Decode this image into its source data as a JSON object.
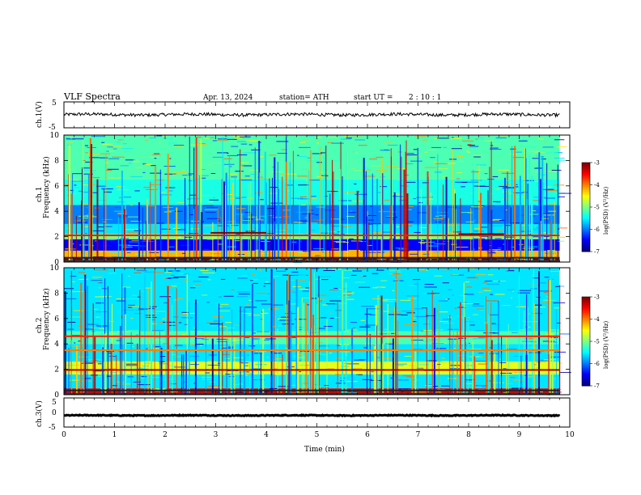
{
  "header": {
    "title": "VLF  Spectra",
    "date": "Apr. 13, 2024",
    "station": "station= ATH",
    "start_prefix": "start  UT  =",
    "start_time": "2  : 10 : 1"
  },
  "chart_data": [
    {
      "type": "line",
      "panel": "ch.1 waveform",
      "ylabel": "ch.1(V)",
      "ylim": [
        -5,
        5
      ],
      "yticks": [
        "5",
        "-5"
      ],
      "xlim": [
        0,
        10
      ],
      "trace": {
        "start_min": 0,
        "end_min": 9.8,
        "mean_V": 0.1,
        "noise_V": 0.6,
        "color": "#000000"
      }
    },
    {
      "type": "heatmap",
      "panel": "ch.1 spectrogram",
      "ylabel": "ch.1",
      "ylabel2": "Frequency  (kHz)",
      "ylim": [
        0,
        10
      ],
      "yticks": [
        "0",
        "2",
        "4",
        "6",
        "8",
        "10"
      ],
      "xlim": [
        0,
        9.8
      ],
      "bands_kHz": [
        {
          "from": 0.0,
          "to": 0.4,
          "level": -2.6
        },
        {
          "from": 0.4,
          "to": 0.9,
          "level": -4.2
        },
        {
          "from": 0.9,
          "to": 1.8,
          "level": -6.5
        },
        {
          "from": 1.8,
          "to": 2.2,
          "level": -5.0
        },
        {
          "from": 2.2,
          "to": 3.0,
          "level": -5.6
        },
        {
          "from": 3.0,
          "to": 4.5,
          "level": -6.0
        },
        {
          "from": 4.5,
          "to": 6.5,
          "level": -5.4
        },
        {
          "from": 6.5,
          "to": 10.0,
          "level": -5.2
        }
      ],
      "lines_kHz": [
        {
          "f": 2.1,
          "level": -3.6,
          "from_min": 0,
          "to_min": 9.8
        },
        {
          "f": 2.3,
          "level": -3.0,
          "from_min": 2.9,
          "to_min": 4.0
        },
        {
          "f": 2.2,
          "level": -3.0,
          "from_min": 7.8,
          "to_min": 8.7
        }
      ],
      "colorbar": {
        "label": "log(PSD) (V²/Hz)",
        "ticks": [
          "-3",
          "-4",
          "-5",
          "-6",
          "-7"
        ],
        "range": [
          -7,
          -3
        ]
      }
    },
    {
      "type": "heatmap",
      "panel": "ch.2 spectrogram",
      "ylabel": "ch.2",
      "ylabel2": "Frequency  (kHz)",
      "ylim": [
        0,
        10
      ],
      "yticks": [
        "0",
        "2",
        "4",
        "6",
        "8",
        "10"
      ],
      "xlim": [
        0,
        9.8
      ],
      "bands_kHz": [
        {
          "from": 0.0,
          "to": 0.5,
          "level": -3.4
        },
        {
          "from": 0.5,
          "to": 1.6,
          "level": -5.6
        },
        {
          "from": 1.6,
          "to": 2.6,
          "level": -4.6
        },
        {
          "from": 2.6,
          "to": 4.0,
          "level": -5.6
        },
        {
          "from": 4.0,
          "to": 5.0,
          "level": -5.2
        },
        {
          "from": 5.0,
          "to": 10.0,
          "level": -5.6
        }
      ],
      "lines_kHz": [
        {
          "f": 1.95,
          "level": -3.2,
          "from_min": 0,
          "to_min": 9.8
        },
        {
          "f": 4.6,
          "level": -3.6,
          "from_min": 0,
          "to_min": 9.8
        },
        {
          "f": 3.5,
          "level": -4.0,
          "from_min": 0,
          "to_min": 9.8
        }
      ],
      "colorbar": {
        "label": "log(PSD) (V²/Hz)",
        "ticks": [
          "-3",
          "-4",
          "-5",
          "-6",
          "-7"
        ],
        "range": [
          -7,
          -3
        ]
      }
    },
    {
      "type": "line",
      "panel": "ch.3 waveform",
      "ylabel": "ch.3(V)",
      "ylim": [
        -5,
        5
      ],
      "yticks": [
        "5",
        "0",
        "-5"
      ],
      "xlim": [
        0,
        10
      ],
      "trace": {
        "start_min": 0,
        "end_min": 9.8,
        "mean_V": -1.0,
        "noise_V": 0.15,
        "color": "#000000"
      }
    }
  ],
  "time_axis": {
    "xlabel": "Time  (min)",
    "xlim": [
      0,
      10
    ],
    "ticks": [
      "0",
      "1",
      "2",
      "3",
      "4",
      "5",
      "6",
      "7",
      "8",
      "9",
      "10"
    ]
  }
}
